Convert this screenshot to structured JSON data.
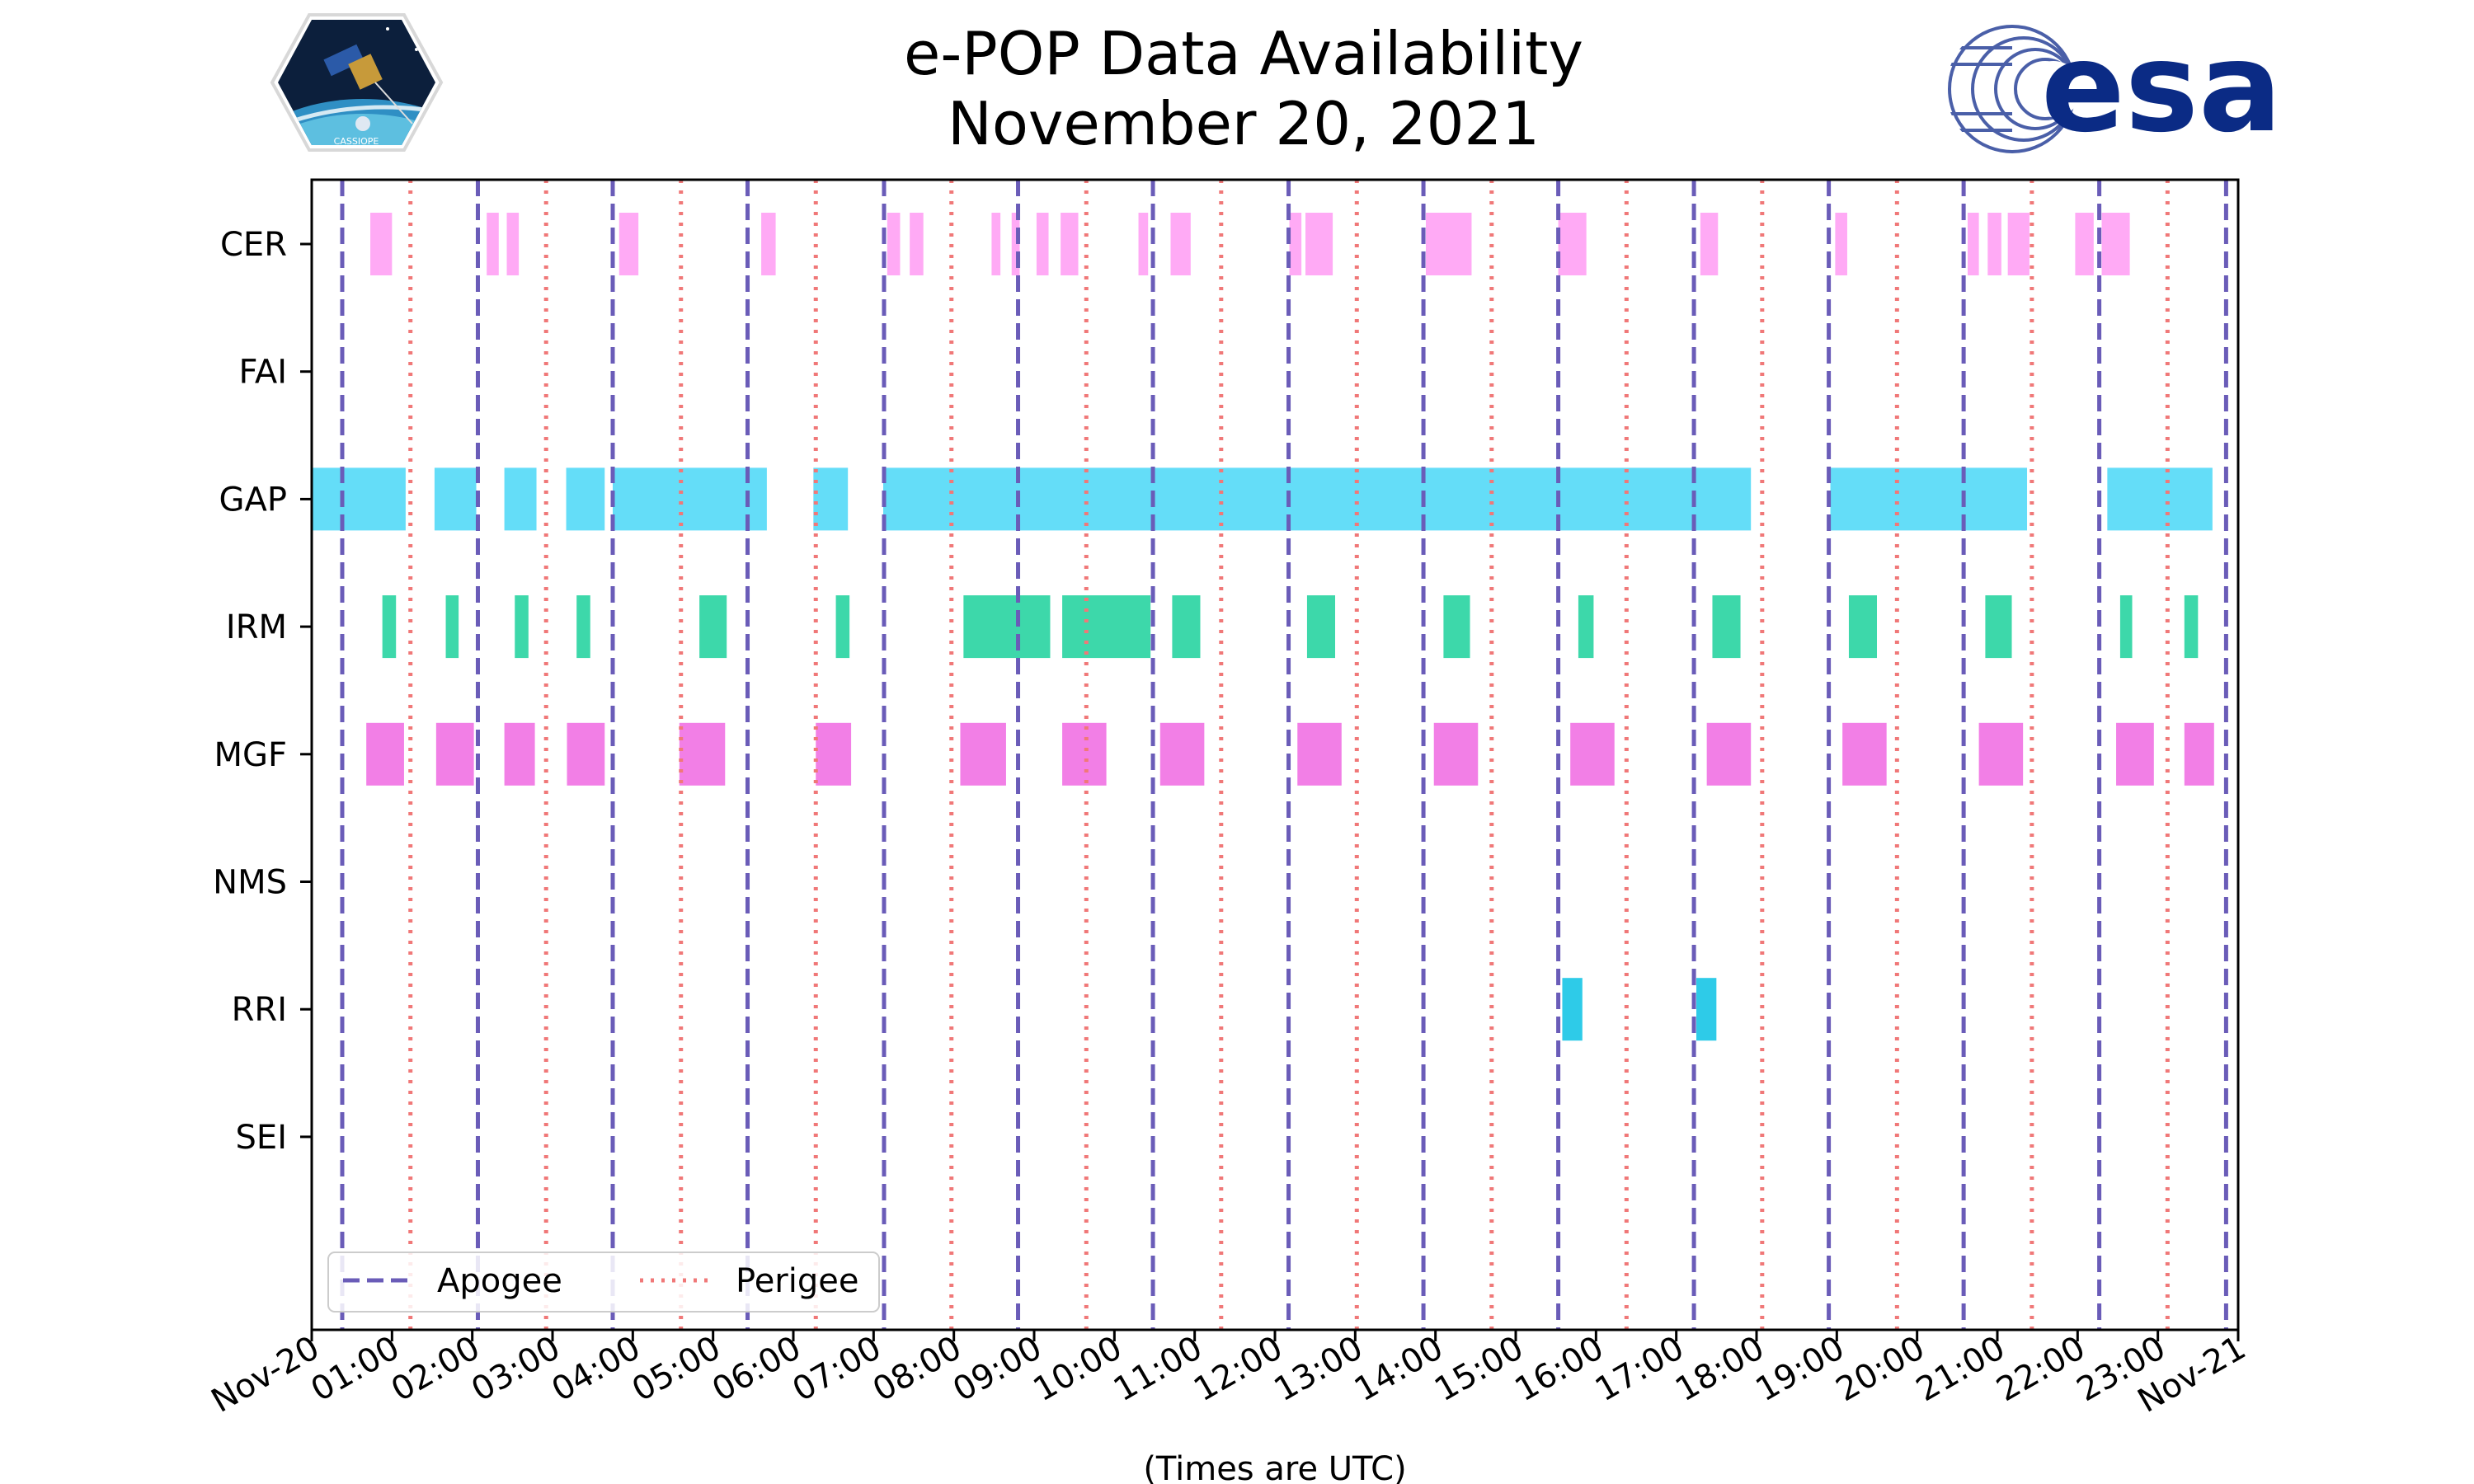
{
  "chart_data": {
    "type": "timeline",
    "title": "e-POP Data Availability",
    "subtitle": "November 20, 2021",
    "xlabel": "(Times are UTC)",
    "x_unit": "hours",
    "xlim": [
      0,
      24
    ],
    "x_ticks": [
      {
        "h": 0,
        "label": "Nov-20"
      },
      {
        "h": 1,
        "label": "01:00"
      },
      {
        "h": 2,
        "label": "02:00"
      },
      {
        "h": 3,
        "label": "03:00"
      },
      {
        "h": 4,
        "label": "04:00"
      },
      {
        "h": 5,
        "label": "05:00"
      },
      {
        "h": 6,
        "label": "06:00"
      },
      {
        "h": 7,
        "label": "07:00"
      },
      {
        "h": 8,
        "label": "08:00"
      },
      {
        "h": 9,
        "label": "09:00"
      },
      {
        "h": 10,
        "label": "10:00"
      },
      {
        "h": 11,
        "label": "11:00"
      },
      {
        "h": 12,
        "label": "12:00"
      },
      {
        "h": 13,
        "label": "13:00"
      },
      {
        "h": 14,
        "label": "14:00"
      },
      {
        "h": 15,
        "label": "15:00"
      },
      {
        "h": 16,
        "label": "16:00"
      },
      {
        "h": 17,
        "label": "17:00"
      },
      {
        "h": 18,
        "label": "18:00"
      },
      {
        "h": 19,
        "label": "19:00"
      },
      {
        "h": 20,
        "label": "20:00"
      },
      {
        "h": 21,
        "label": "21:00"
      },
      {
        "h": 22,
        "label": "22:00"
      },
      {
        "h": 23,
        "label": "23:00"
      },
      {
        "h": 24,
        "label": "Nov-21"
      }
    ],
    "instruments": [
      "CER",
      "FAI",
      "GAP",
      "IRM",
      "MGF",
      "NMS",
      "RRI",
      "SEI"
    ],
    "colors": {
      "CER": "#ffaaf5",
      "FAI": "#cccccc",
      "GAP": "#64ddf8",
      "IRM": "#3dd8aa",
      "MGF": "#f27fe6",
      "NMS": "#cccccc",
      "RRI": "#2ecbe8",
      "SEI": "#cccccc",
      "apogee": "#6a5cb8",
      "perigee": "#f07878"
    },
    "series": [
      {
        "name": "CER",
        "intervals": [
          [
            0.73,
            1.0
          ],
          [
            2.18,
            2.33
          ],
          [
            2.43,
            2.58
          ],
          [
            3.83,
            4.07
          ],
          [
            5.6,
            5.78
          ],
          [
            7.17,
            7.33
          ],
          [
            7.45,
            7.62
          ],
          [
            8.47,
            8.58
          ],
          [
            8.72,
            8.82
          ],
          [
            9.03,
            9.18
          ],
          [
            9.33,
            9.55
          ],
          [
            10.3,
            10.42
          ],
          [
            10.7,
            10.95
          ],
          [
            12.18,
            12.33
          ],
          [
            12.38,
            12.72
          ],
          [
            13.88,
            14.45
          ],
          [
            15.53,
            15.88
          ],
          [
            17.3,
            17.52
          ],
          [
            18.98,
            19.13
          ],
          [
            20.63,
            20.77
          ],
          [
            20.88,
            21.05
          ],
          [
            21.13,
            21.4
          ],
          [
            21.97,
            22.2
          ],
          [
            22.3,
            22.65
          ]
        ]
      },
      {
        "name": "FAI",
        "intervals": []
      },
      {
        "name": "GAP",
        "intervals": [
          [
            0.0,
            1.17
          ],
          [
            1.53,
            2.05
          ],
          [
            2.4,
            2.8
          ],
          [
            3.17,
            3.65
          ],
          [
            3.75,
            5.67
          ],
          [
            6.25,
            6.68
          ],
          [
            7.12,
            17.93
          ],
          [
            18.92,
            21.37
          ],
          [
            22.37,
            23.68
          ]
        ]
      },
      {
        "name": "IRM",
        "intervals": [
          [
            0.88,
            1.05
          ],
          [
            1.67,
            1.83
          ],
          [
            2.53,
            2.7
          ],
          [
            3.3,
            3.47
          ],
          [
            4.83,
            5.17
          ],
          [
            6.53,
            6.7
          ],
          [
            8.12,
            9.2
          ],
          [
            9.35,
            10.45
          ],
          [
            10.72,
            11.07
          ],
          [
            12.4,
            12.75
          ],
          [
            14.1,
            14.43
          ],
          [
            15.78,
            15.97
          ],
          [
            17.45,
            17.8
          ],
          [
            19.15,
            19.5
          ],
          [
            20.85,
            21.18
          ],
          [
            22.53,
            22.68
          ],
          [
            23.33,
            23.5
          ]
        ]
      },
      {
        "name": "MGF",
        "intervals": [
          [
            0.68,
            1.15
          ],
          [
            1.55,
            2.02
          ],
          [
            2.4,
            2.78
          ],
          [
            3.18,
            3.65
          ],
          [
            4.58,
            5.15
          ],
          [
            6.28,
            6.72
          ],
          [
            8.08,
            8.65
          ],
          [
            9.35,
            9.9
          ],
          [
            10.57,
            11.12
          ],
          [
            12.28,
            12.83
          ],
          [
            13.98,
            14.53
          ],
          [
            15.68,
            16.23
          ],
          [
            17.38,
            17.93
          ],
          [
            19.07,
            19.62
          ],
          [
            20.77,
            21.32
          ],
          [
            22.48,
            22.95
          ],
          [
            23.33,
            23.7
          ]
        ]
      },
      {
        "name": "NMS",
        "intervals": []
      },
      {
        "name": "RRI",
        "intervals": [
          [
            15.58,
            15.83
          ],
          [
            17.25,
            17.5
          ]
        ]
      },
      {
        "name": "SEI",
        "intervals": []
      }
    ],
    "apogee": [
      0.38,
      2.07,
      3.75,
      5.43,
      7.13,
      8.8,
      10.48,
      12.17,
      13.85,
      15.53,
      17.22,
      18.9,
      20.58,
      22.27,
      23.85
    ],
    "perigee": [
      1.23,
      2.92,
      4.6,
      6.28,
      7.97,
      9.65,
      11.33,
      13.02,
      14.7,
      16.38,
      18.07,
      19.75,
      21.43,
      23.12
    ],
    "legend": {
      "apogee_label": "Apogee",
      "perigee_label": "Perigee",
      "position": "lower-left"
    }
  },
  "logos": {
    "left_badge_text": "CASSIOPE",
    "right_logo_text": "esa"
  }
}
